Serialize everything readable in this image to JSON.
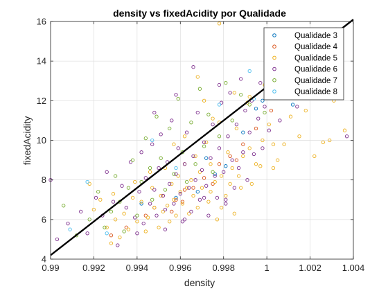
{
  "chart_data": {
    "type": "scatter",
    "title": "density vs fixedAcidity por Qualidade",
    "xlabel": "density",
    "ylabel": "fixedAcidity",
    "xlim": [
      0.99,
      1.004
    ],
    "ylim": [
      4,
      16
    ],
    "xticks": [
      0.99,
      0.992,
      0.994,
      0.996,
      0.998,
      1,
      1.002,
      1.004
    ],
    "xtick_labels": [
      "0.99",
      "0.992",
      "0.994",
      "0.996",
      "0.998",
      "1",
      "1.002",
      "1.004"
    ],
    "yticks": [
      4,
      6,
      8,
      10,
      12,
      14,
      16
    ],
    "ytick_labels": [
      "4",
      "6",
      "8",
      "10",
      "12",
      "14",
      "16"
    ],
    "grid": true,
    "legend_position": "top-right",
    "series": [
      {
        "name": "Qualidade 3",
        "color": "#0072BD",
        "points": [
          [
            0.9968,
            7.4
          ],
          [
            0.9976,
            8.3
          ],
          [
            0.9989,
            10.4
          ],
          [
            0.9958,
            7.1
          ],
          [
            0.9995,
            11.6
          ],
          [
            0.9942,
            6.8
          ],
          [
            0.9998,
            12.0
          ],
          [
            0.9972,
            9.1
          ],
          [
            0.9981,
            8.7
          ],
          [
            1.0012,
            11.8
          ]
        ]
      },
      {
        "name": "Qualidade 4",
        "color": "#D95319",
        "points": [
          [
            0.9952,
            7.2
          ],
          [
            0.9961,
            6.9
          ],
          [
            0.9978,
            8.8
          ],
          [
            0.9944,
            6.2
          ],
          [
            0.9966,
            7.6
          ],
          [
            0.9989,
            9.8
          ],
          [
            0.9935,
            5.6
          ],
          [
            0.9971,
            8.1
          ],
          [
            0.9995,
            10.6
          ],
          [
            0.9958,
            7.0
          ],
          [
            0.9983,
            9.2
          ],
          [
            0.9948,
            6.6
          ],
          [
            0.9975,
            7.8
          ],
          [
            1.0002,
            11.5
          ],
          [
            0.9962,
            7.5
          ],
          [
            0.9928,
            5.2
          ],
          [
            0.9986,
            9.0
          ],
          [
            0.9956,
            6.4
          ]
        ]
      },
      {
        "name": "Qualidade 5",
        "color": "#EDB120",
        "points": [
          [
            0.9978,
            15.9
          ],
          [
            1.0031,
            12.0
          ],
          [
            1.0029,
            10.0
          ],
          [
            1.0036,
            10.5
          ],
          [
            1.0022,
            9.2
          ],
          [
            1.0018,
            11.5
          ],
          [
            1.0015,
            10.2
          ],
          [
            1.0026,
            9.9
          ],
          [
            1.0011,
            11.2
          ],
          [
            1.0005,
            9.0
          ],
          [
            1.0003,
            9.8
          ],
          [
            1.0003,
            8.6
          ],
          [
            1.0001,
            10.8
          ],
          [
            0.9998,
            10.0
          ],
          [
            0.9995,
            8.8
          ],
          [
            0.9992,
            9.6
          ],
          [
            0.9991,
            11.9
          ],
          [
            0.9989,
            9.2
          ],
          [
            0.9988,
            7.6
          ],
          [
            0.9986,
            10.6
          ],
          [
            0.9984,
            8.6
          ],
          [
            0.9982,
            9.4
          ],
          [
            0.9981,
            7.2
          ],
          [
            0.9979,
            8.2
          ],
          [
            0.9978,
            10.9
          ],
          [
            0.9976,
            7.9
          ],
          [
            0.9974,
            8.8
          ],
          [
            0.9973,
            6.9
          ],
          [
            0.9972,
            9.9
          ],
          [
            0.997,
            7.6
          ],
          [
            0.9969,
            8.4
          ],
          [
            0.9968,
            6.6
          ],
          [
            0.9967,
            9.2
          ],
          [
            0.9966,
            7.2
          ],
          [
            0.9965,
            8.0
          ],
          [
            0.9964,
            6.3
          ],
          [
            0.9963,
            7.6
          ],
          [
            0.9962,
            8.8
          ],
          [
            0.9961,
            6.8
          ],
          [
            0.996,
            7.4
          ],
          [
            0.9959,
            8.2
          ],
          [
            0.9958,
            6.2
          ],
          [
            0.9957,
            7.0
          ],
          [
            0.9956,
            7.8
          ],
          [
            0.9955,
            5.9
          ],
          [
            0.9954,
            6.7
          ],
          [
            0.9953,
            8.6
          ],
          [
            0.9952,
            6.4
          ],
          [
            0.9951,
            7.2
          ],
          [
            0.995,
            5.6
          ],
          [
            0.9948,
            6.6
          ],
          [
            0.9947,
            7.6
          ],
          [
            0.9945,
            6.1
          ],
          [
            0.9944,
            5.4
          ],
          [
            0.9942,
            6.9
          ],
          [
            0.994,
            5.9
          ],
          [
            0.9938,
            7.1
          ],
          [
            0.9936,
            5.5
          ],
          [
            0.9934,
            6.3
          ],
          [
            0.9932,
            5.1
          ],
          [
            0.993,
            6.0
          ],
          [
            0.9928,
            4.8
          ],
          [
            0.9926,
            5.6
          ],
          [
            0.9923,
            7.0
          ],
          [
            0.992,
            6.5
          ],
          [
            0.9918,
            7.8
          ],
          [
            0.9975,
            11.1
          ],
          [
            0.9985,
            12.4
          ],
          [
            0.9992,
            12.2
          ],
          [
            0.9962,
            10.2
          ],
          [
            0.9968,
            13.2
          ],
          [
            0.9974,
            7.4
          ],
          [
            0.9979,
            6.6
          ],
          [
            0.9983,
            7.8
          ],
          [
            0.9987,
            8.2
          ],
          [
            0.9993,
            7.8
          ],
          [
            0.9997,
            8.7
          ],
          [
            1.0008,
            9.8
          ],
          [
            0.9999,
            12.8
          ],
          [
            0.9971,
            12.0
          ],
          [
            0.9957,
            9.8
          ],
          [
            0.9946,
            8.4
          ],
          [
            0.9939,
            7.9
          ],
          [
            0.9929,
            7.3
          ],
          [
            0.9985,
            6.3
          ],
          [
            0.9977,
            6.0
          ]
        ]
      },
      {
        "name": "Qualidade 6",
        "color": "#7E2F8E",
        "points": [
          [
            0.99,
            8.0
          ],
          [
            0.9903,
            5.0
          ],
          [
            0.9908,
            5.8
          ],
          [
            0.9914,
            6.4
          ],
          [
            0.9917,
            5.3
          ],
          [
            0.9921,
            7.1
          ],
          [
            0.9924,
            6.2
          ],
          [
            0.9926,
            8.4
          ],
          [
            0.9929,
            6.9
          ],
          [
            0.9931,
            4.7
          ],
          [
            0.9933,
            7.7
          ],
          [
            0.9935,
            6.6
          ],
          [
            0.9937,
            8.9
          ],
          [
            0.9939,
            6.1
          ],
          [
            0.9941,
            7.4
          ],
          [
            0.9942,
            9.4
          ],
          [
            0.9943,
            5.8
          ],
          [
            0.9944,
            8.1
          ],
          [
            0.9946,
            6.8
          ],
          [
            0.9947,
            9.8
          ],
          [
            0.9948,
            7.5
          ],
          [
            0.9949,
            6.2
          ],
          [
            0.995,
            8.6
          ],
          [
            0.9951,
            10.3
          ],
          [
            0.9952,
            7.2
          ],
          [
            0.9953,
            6.5
          ],
          [
            0.9954,
            8.9
          ],
          [
            0.9955,
            7.8
          ],
          [
            0.9956,
            11.0
          ],
          [
            0.9957,
            6.8
          ],
          [
            0.9958,
            8.3
          ],
          [
            0.9959,
            9.6
          ],
          [
            0.996,
            7.3
          ],
          [
            0.9961,
            5.9
          ],
          [
            0.9962,
            8.8
          ],
          [
            0.9963,
            10.4
          ],
          [
            0.9964,
            7.6
          ],
          [
            0.9965,
            6.4
          ],
          [
            0.9966,
            9.2
          ],
          [
            0.9967,
            8.0
          ],
          [
            0.9968,
            11.4
          ],
          [
            0.9969,
            7.0
          ],
          [
            0.997,
            8.5
          ],
          [
            0.9971,
            9.9
          ],
          [
            0.9972,
            7.7
          ],
          [
            0.9973,
            6.2
          ],
          [
            0.9974,
            9.1
          ],
          [
            0.9975,
            10.8
          ],
          [
            0.9976,
            8.2
          ],
          [
            0.9977,
            7.1
          ],
          [
            0.9978,
            9.6
          ],
          [
            0.9979,
            11.9
          ],
          [
            0.998,
            8.4
          ],
          [
            0.9981,
            6.8
          ],
          [
            0.9982,
            10.2
          ],
          [
            0.9983,
            12.4
          ],
          [
            0.9984,
            9.0
          ],
          [
            0.9985,
            7.6
          ],
          [
            0.9986,
            10.8
          ],
          [
            0.9987,
            8.6
          ],
          [
            0.9988,
            13.1
          ],
          [
            0.9989,
            9.4
          ],
          [
            0.999,
            11.5
          ],
          [
            0.9991,
            8.0
          ],
          [
            0.9992,
            10.4
          ],
          [
            0.9993,
            12.0
          ],
          [
            0.9994,
            9.3
          ],
          [
            0.9996,
            11.1
          ],
          [
            0.9997,
            12.9
          ],
          [
            0.9998,
            9.6
          ],
          [
            0.9999,
            11.7
          ],
          [
            1.0001,
            10.5
          ],
          [
            1.0003,
            12.6
          ],
          [
            1.0006,
            11.0
          ],
          [
            1.0009,
            12.2
          ],
          [
            1.0014,
            11.7
          ],
          [
            1.0021,
            12.4
          ],
          [
            1.003,
            12.5
          ],
          [
            1.0037,
            10.2
          ],
          [
            0.9966,
            13.7
          ],
          [
            0.9978,
            12.8
          ],
          [
            0.9958,
            12.3
          ],
          [
            0.9948,
            11.4
          ],
          [
            0.9971,
            7.1
          ],
          [
            0.9962,
            6.0
          ],
          [
            0.9953,
            5.5
          ],
          [
            0.9981,
            7.0
          ],
          [
            0.994,
            5.3
          ]
        ]
      },
      {
        "name": "Qualidade 7",
        "color": "#77AC30",
        "points": [
          [
            0.9906,
            6.7
          ],
          [
            0.9912,
            5.2
          ],
          [
            0.9918,
            6.0
          ],
          [
            0.9922,
            7.4
          ],
          [
            0.9925,
            5.6
          ],
          [
            0.9928,
            6.4
          ],
          [
            0.993,
            8.2
          ],
          [
            0.9932,
            6.9
          ],
          [
            0.9934,
            5.4
          ],
          [
            0.9936,
            7.6
          ],
          [
            0.9938,
            9.0
          ],
          [
            0.994,
            6.2
          ],
          [
            0.9942,
            7.9
          ],
          [
            0.9944,
            10.1
          ],
          [
            0.9946,
            8.6
          ],
          [
            0.9947,
            7.0
          ],
          [
            0.9949,
            11.2
          ],
          [
            0.9951,
            9.1
          ],
          [
            0.9953,
            7.5
          ],
          [
            0.9955,
            10.6
          ],
          [
            0.9957,
            8.3
          ],
          [
            0.9959,
            12.1
          ],
          [
            0.9961,
            9.4
          ],
          [
            0.9963,
            7.9
          ],
          [
            0.9965,
            10.9
          ],
          [
            0.9967,
            8.8
          ],
          [
            0.9969,
            12.6
          ],
          [
            0.9971,
            9.7
          ],
          [
            0.9973,
            11.3
          ],
          [
            0.9975,
            8.4
          ],
          [
            0.9978,
            10.2
          ],
          [
            0.9981,
            12.9
          ],
          [
            0.9984,
            11.0
          ],
          [
            0.9988,
            12.3
          ],
          [
            0.9992,
            11.8
          ],
          [
            0.9999,
            11.4
          ],
          [
            1.0006,
            12.4
          ],
          [
            1.0032,
            15.6
          ]
        ]
      },
      {
        "name": "Qualidade 8",
        "color": "#4DBEEE",
        "points": [
          [
            0.9909,
            5.5
          ],
          [
            0.9917,
            7.9
          ],
          [
            0.9926,
            5.3
          ],
          [
            0.9947,
            10.0
          ],
          [
            0.9992,
            13.5
          ],
          [
            0.9978,
            11.8
          ],
          [
            0.9958,
            8.6
          ],
          [
            0.9994,
            12.1
          ]
        ]
      }
    ],
    "fit_line": {
      "color": "#000000",
      "points": [
        [
          0.99,
          4.2
        ],
        [
          1.004,
          16.1
        ]
      ]
    }
  }
}
